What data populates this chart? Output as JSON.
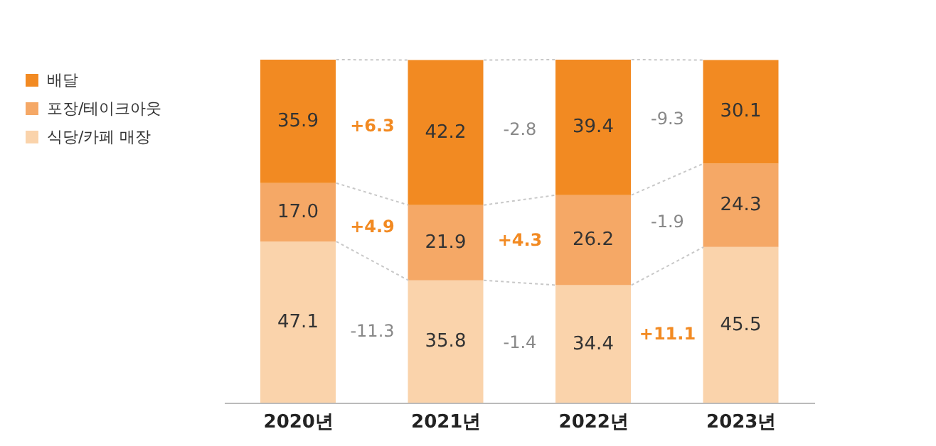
{
  "chart_data": {
    "type": "bar",
    "stacked": true,
    "categories": [
      "2020년",
      "2021년",
      "2022년",
      "2023년"
    ],
    "series": [
      {
        "name": "식당/카페 매장",
        "color": "#fad3ab",
        "values": [
          47.1,
          35.8,
          34.4,
          45.5
        ],
        "value_labels": [
          "47.1",
          "35.8",
          "34.4",
          "45.5"
        ]
      },
      {
        "name": "포장/테이크아웃",
        "color": "#f5a866",
        "values": [
          17.0,
          21.9,
          26.2,
          24.3
        ],
        "value_labels": [
          "17.0",
          "21.9",
          "26.2",
          "24.3"
        ]
      },
      {
        "name": "배달",
        "color": "#f28a22",
        "values": [
          35.9,
          42.2,
          39.4,
          30.1
        ],
        "value_labels": [
          "35.9",
          "42.2",
          "39.4",
          "30.1"
        ]
      }
    ],
    "annotations": [
      "+6.3",
      "+4.9",
      "-11.3",
      "-2.8",
      "+4.3",
      "-1.4",
      "-9.3",
      "-1.9",
      "+11.1"
    ],
    "legend": "left",
    "grid": false
  }
}
